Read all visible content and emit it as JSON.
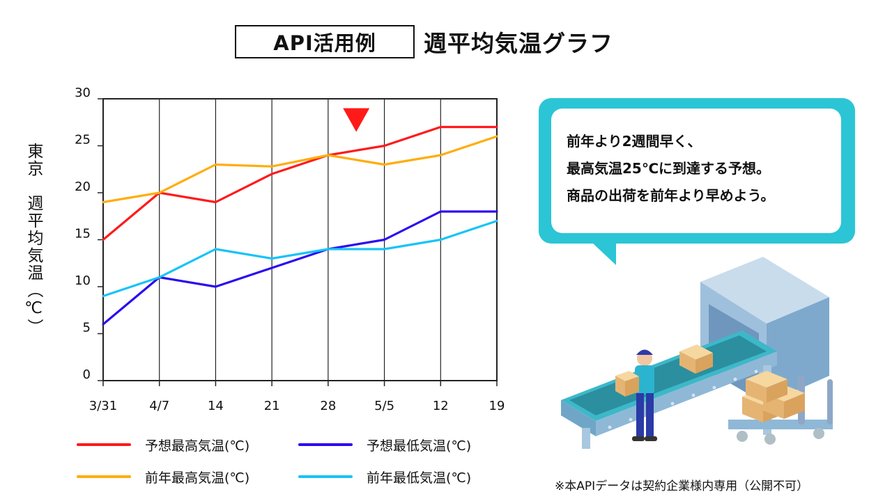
{
  "header": {
    "badge": "API活用例",
    "title": "週平均気温グラフ"
  },
  "y_axis_label": "東京　週平均気温（℃）",
  "chart_data": {
    "type": "line",
    "title": "週平均気温グラフ",
    "ylabel": "東京　週平均気温（℃）",
    "xlabel": "",
    "categories": [
      "3/31",
      "4/7",
      "14",
      "21",
      "28",
      "5/5",
      "12",
      "19"
    ],
    "ylim": [
      0,
      30
    ],
    "yticks": [
      0,
      5,
      10,
      15,
      20,
      25,
      30
    ],
    "grid": true,
    "legend_position": "bottom",
    "series": [
      {
        "name": "予想最高気温(℃)",
        "color": "#ff1a1a",
        "values": [
          15,
          20,
          19,
          22,
          24,
          25,
          27,
          27
        ]
      },
      {
        "name": "前年最高気温(℃)",
        "color": "#ffad0d",
        "values": [
          19,
          20,
          23,
          22.8,
          24,
          23,
          24,
          26
        ]
      },
      {
        "name": "予想最低気温(℃)",
        "color": "#2a0df0",
        "values": [
          6,
          11,
          10,
          12,
          14,
          15,
          18,
          18
        ]
      },
      {
        "name": "前年最低気温(℃)",
        "color": "#19c3f7",
        "values": [
          9,
          11,
          14,
          13,
          14,
          14,
          15,
          17
        ]
      }
    ],
    "annotation": {
      "type": "marker",
      "color": "#ff1a1a",
      "near_category": "5/5",
      "series_index": 0
    }
  },
  "bubble": {
    "lines": [
      "前年より2週間早く、",
      "最高気温25℃に到達する予想。",
      "商品の出荷を前年より早めよう。"
    ]
  },
  "illustration": {
    "name": "conveyor-worker-illustration"
  },
  "footnote": "※本APIデータは契約企業様内専用（公開不可）",
  "colors": {
    "bubble": "#2bc5d6"
  }
}
